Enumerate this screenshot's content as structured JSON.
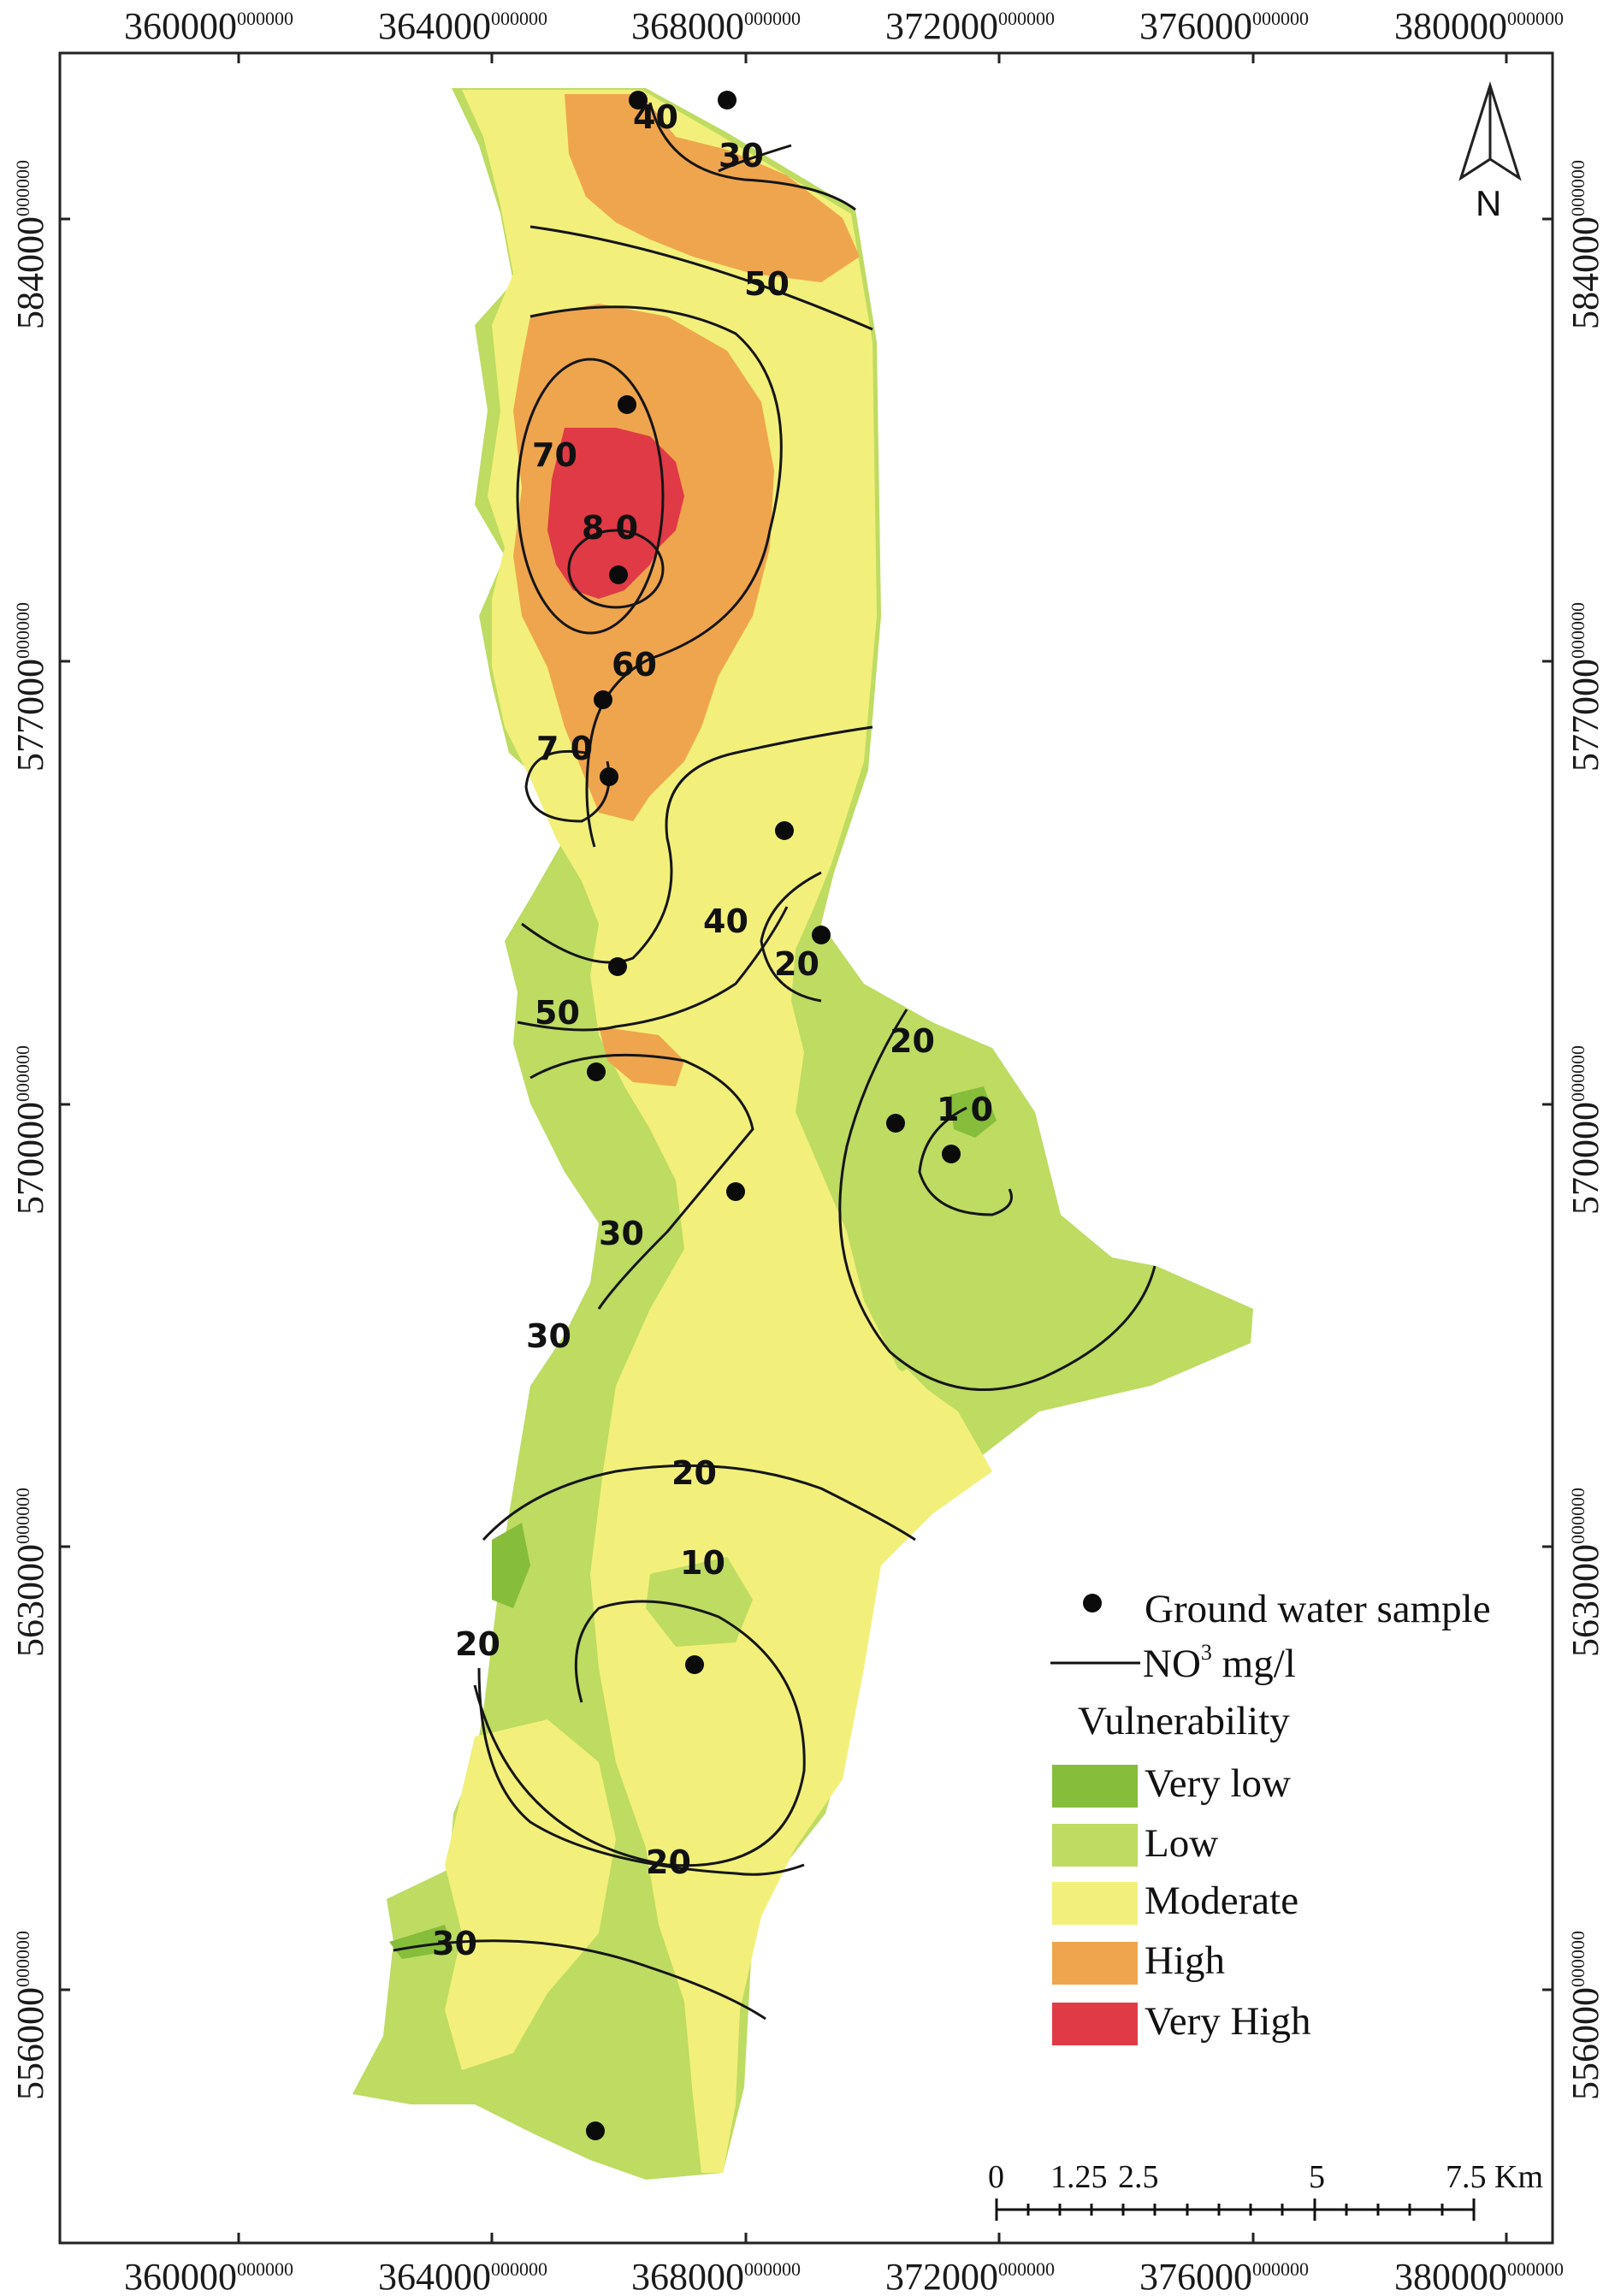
{
  "map": {
    "easting_ticks": [
      "360000",
      "364000",
      "368000",
      "372000",
      "376000",
      "380000"
    ],
    "easting_suffix": "000000",
    "northing_ticks": [
      "584000",
      "577000",
      "570000",
      "563000",
      "556000"
    ],
    "northing_suffix": "000000",
    "north_arrow_label": "N",
    "contour_labels": [
      "40",
      "30",
      "50",
      "70",
      "8 0",
      "60",
      "7 0",
      "40",
      "20",
      "50",
      "20",
      "1 0",
      "30",
      "30",
      "20",
      "10",
      "20",
      "20",
      "30"
    ]
  },
  "legend": {
    "sample_label": "Ground water sample",
    "contour_label": "NO",
    "contour_sup": "3",
    "contour_unit": " mg/l",
    "vulnerability_title": "Vulnerability",
    "classes": [
      {
        "label": "Very low",
        "color": "#86bd3a"
      },
      {
        "label": "Low",
        "color": "#bedb62"
      },
      {
        "label": "Moderate",
        "color": "#f2f07a"
      },
      {
        "label": "High",
        "color": "#efa54d"
      },
      {
        "label": "Very High",
        "color": "#df3a45"
      }
    ]
  },
  "scale_bar": {
    "labels": [
      "0",
      "1.25",
      "2.5",
      "5",
      "7.5 Km"
    ]
  },
  "colors": {
    "very_low": "#86bd3a",
    "low": "#bedb62",
    "moderate": "#f2f07a",
    "high": "#efa54d",
    "very_high": "#df3a45"
  }
}
